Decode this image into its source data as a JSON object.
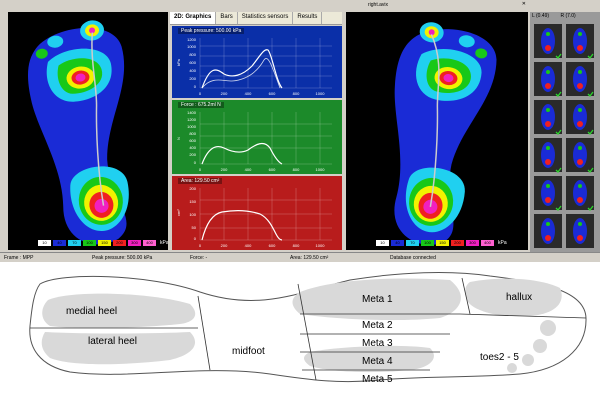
{
  "left_scale": [
    "10",
    "40",
    "70",
    "100",
    "150",
    "200",
    "300",
    "400"
  ],
  "left_scale_unit": "kPa",
  "right_scale": [
    "10",
    "40",
    "70",
    "100",
    "150",
    "200",
    "300",
    "400"
  ],
  "right_scale_unit": "kPa",
  "tabs": [
    {
      "label": "2D: Graphics",
      "active": true
    },
    {
      "label": "Bars",
      "active": false
    },
    {
      "label": "Statistics sensors",
      "active": false
    },
    {
      "label": "Results",
      "active": false
    }
  ],
  "graphs": [
    {
      "title": "Peak pressure: 500.00 kPa",
      "color": "#0a2fa8",
      "yticks": [
        "1200",
        "1000",
        "800",
        "600",
        "400",
        "200",
        "0"
      ],
      "xticks": [
        "0",
        "200",
        "400",
        "600",
        "800",
        "1000",
        "1200"
      ],
      "ylabel": "kPa"
    },
    {
      "title": "Force : 675.2ml N",
      "color": "#1c8a2a",
      "yticks": [
        "1400",
        "1200",
        "1000",
        "800",
        "600",
        "400",
        "200",
        "0"
      ],
      "xticks": [
        "0",
        "200",
        "400",
        "600",
        "800",
        "1000",
        "1200"
      ],
      "ylabel": "N"
    },
    {
      "title": "Area: 129.50 cm²",
      "color": "#b81c1c",
      "yticks": [
        "200",
        "150",
        "100",
        "50",
        "0"
      ],
      "xticks": [
        "0",
        "200",
        "400",
        "600",
        "800",
        "1000",
        "1200"
      ],
      "ylabel": "cm²"
    }
  ],
  "window_title": "right.avix",
  "thumb_headers": [
    "L (0.49)",
    "R (7.0)"
  ],
  "status": {
    "frame": "Frame : MPP",
    "peak": "Peak pressure: 500.00 kPa",
    "force": "Force: -",
    "area": "Area: 129.50 cm²",
    "db": "Database connected"
  },
  "zones": {
    "medial_heel": "medial heel",
    "lateral_heel": "lateral heel",
    "midfoot": "midfoot",
    "meta1": "Meta 1",
    "meta2": "Meta 2",
    "meta3": "Meta 3",
    "meta4": "Meta 4",
    "meta5": "Meta 5",
    "hallux": "hallux",
    "toes": "toes2 - 5"
  },
  "colors": {
    "blue": "#1a2bd6",
    "cyan": "#20d0f0",
    "green": "#18c818",
    "yellow": "#f2f200",
    "red": "#f02020",
    "magenta": "#f020c0",
    "pink": "#ff60d0",
    "graph_line": "#ffffff"
  }
}
